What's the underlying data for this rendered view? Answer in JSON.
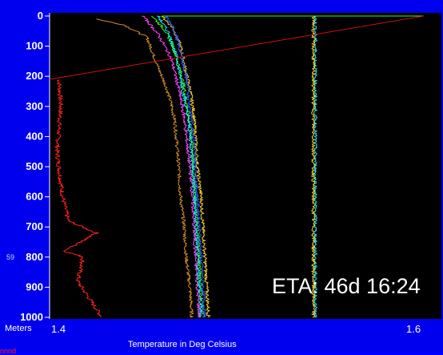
{
  "chart_data": {
    "type": "line",
    "title": "",
    "xlabel": "Temperature in Deg Celsius",
    "ylabel": "Meters",
    "x_tick_labels": [
      "1.4",
      "1.6"
    ],
    "xlim": [
      1.4,
      1.6
    ],
    "ylim": [
      1000,
      0
    ],
    "y_ticks": [
      0,
      100,
      200,
      300,
      400,
      500,
      600,
      700,
      800,
      900,
      1000
    ],
    "y_inverted": true,
    "grid": false,
    "annotation": "ETA: 46d 16:24",
    "side_tag": "59",
    "legend_fragment": "nnnd",
    "series": [
      {
        "color": "#ff2020",
        "depth": [
          210,
          300,
          450,
          600,
          680,
          720,
          780,
          800,
          880,
          1000
        ],
        "temp": [
          1.405,
          1.406,
          1.404,
          1.407,
          1.41,
          1.425,
          1.408,
          1.418,
          1.415,
          1.428
        ]
      },
      {
        "color": "#d08b2a",
        "depth": [
          10,
          30,
          70,
          120,
          170,
          230,
          290,
          350,
          420,
          500,
          600,
          700,
          800,
          900,
          1000
        ],
        "temp": [
          1.425,
          1.44,
          1.452,
          1.455,
          1.458,
          1.462,
          1.465,
          1.467,
          1.468,
          1.469,
          1.47,
          1.472,
          1.473,
          1.475,
          1.476
        ]
      },
      {
        "color": "#ffd21f",
        "depth": [
          0,
          40,
          100,
          160,
          240,
          320,
          400,
          500,
          600,
          700,
          800,
          900,
          1000
        ],
        "temp": [
          1.46,
          1.466,
          1.47,
          1.472,
          1.475,
          1.477,
          1.478,
          1.479,
          1.481,
          1.482,
          1.483,
          1.484,
          1.485
        ]
      },
      {
        "color": "#22ff22",
        "depth": [
          0,
          50,
          100,
          160,
          240,
          320,
          400,
          500,
          600,
          700,
          800,
          900,
          1000
        ],
        "temp": [
          1.455,
          1.462,
          1.466,
          1.469,
          1.472,
          1.474,
          1.476,
          1.477,
          1.478,
          1.479,
          1.48,
          1.481,
          1.482
        ]
      },
      {
        "color": "#3355ff",
        "depth": [
          0,
          50,
          120,
          200,
          300,
          400,
          500,
          600,
          700,
          800,
          900,
          1000
        ],
        "temp": [
          1.462,
          1.467,
          1.47,
          1.473,
          1.475,
          1.477,
          1.478,
          1.479,
          1.48,
          1.481,
          1.482,
          1.483
        ]
      },
      {
        "color": "#ff44ff",
        "depth": [
          0,
          60,
          140,
          240,
          340,
          450,
          560,
          680,
          800,
          900,
          1000
        ],
        "temp": [
          1.45,
          1.458,
          1.465,
          1.469,
          1.472,
          1.474,
          1.476,
          1.477,
          1.478,
          1.479,
          1.48
        ]
      },
      {
        "color": "#22e5ff",
        "depth": [
          0,
          60,
          140,
          240,
          340,
          450,
          560,
          680,
          800,
          900,
          1000
        ],
        "temp": [
          1.458,
          1.464,
          1.468,
          1.471,
          1.474,
          1.476,
          1.477,
          1.478,
          1.479,
          1.48,
          1.481
        ]
      },
      {
        "color": "#22e5ff",
        "depth": [
          0,
          100,
          200,
          300,
          400,
          500,
          600,
          700,
          800,
          900,
          1000
        ],
        "temp": [
          1.542,
          1.542,
          1.542,
          1.542,
          1.542,
          1.542,
          1.542,
          1.542,
          1.542,
          1.542,
          1.542
        ]
      },
      {
        "color": "#ffd21f",
        "depth": [
          0,
          100,
          200,
          300,
          400,
          500,
          600,
          700,
          800,
          900,
          1000
        ],
        "temp": [
          1.541,
          1.541,
          1.541,
          1.541,
          1.541,
          1.541,
          1.541,
          1.541,
          1.541,
          1.541,
          1.541
        ]
      },
      {
        "color": "#22ff22",
        "depth": [
          0,
          0,
          0
        ],
        "temp": [
          1.46,
          1.53,
          1.6
        ]
      },
      {
        "color": "#cc1111",
        "depth": [
          210,
          0
        ],
        "temp": [
          1.4,
          1.6
        ]
      }
    ]
  }
}
